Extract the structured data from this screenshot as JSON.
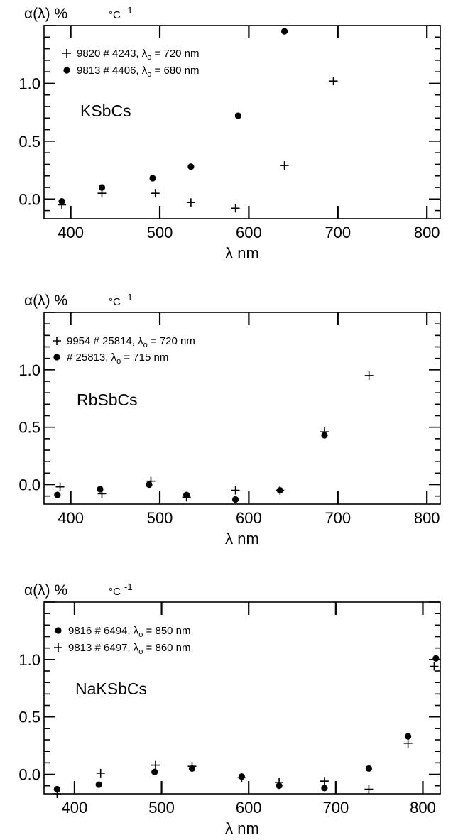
{
  "chart_data": [
    {
      "type": "scatter",
      "ylabel": "α(λ) %",
      "yunit": "°C",
      "yunit_exp": "-1",
      "xlabel": "λ nm",
      "label": "KSbCs",
      "xlim": [
        370,
        815
      ],
      "ylim": [
        -0.17,
        1.5
      ],
      "xticks": [
        400,
        500,
        600,
        700,
        800
      ],
      "xticklabels": [
        "400",
        "500",
        "600",
        "700",
        "800"
      ],
      "yticks": [
        0.0,
        0.5,
        1.0
      ],
      "yticklabels": [
        "0.0",
        "0.5",
        "1.0"
      ],
      "legend": [
        {
          "marker": "plus",
          "label": "9820 # 4243, λ",
          "sub": "o",
          "suffix": " = 720 nm"
        },
        {
          "marker": "dot",
          "label": "9813 # 4406, λ",
          "sub": "o",
          "suffix": " = 680 nm"
        }
      ],
      "series": [
        {
          "marker": "plus",
          "x": [
            390,
            435,
            495,
            535,
            585,
            640,
            695
          ],
          "y": [
            -0.05,
            0.05,
            0.05,
            -0.03,
            -0.08,
            0.29,
            1.02
          ]
        },
        {
          "marker": "dot",
          "x": [
            390,
            435,
            492,
            535,
            588,
            640
          ],
          "y": [
            -0.02,
            0.1,
            0.18,
            0.28,
            0.72,
            1.45
          ]
        }
      ]
    },
    {
      "type": "scatter",
      "ylabel": "α(λ) %",
      "yunit": "°C",
      "yunit_exp": "-1",
      "xlabel": "λ nm",
      "label": "RbSbCs",
      "xlim": [
        370,
        815
      ],
      "ylim": [
        -0.17,
        1.5
      ],
      "xticks": [
        400,
        500,
        600,
        700,
        800
      ],
      "xticklabels": [
        "400",
        "500",
        "600",
        "700",
        "800"
      ],
      "yticks": [
        0.0,
        0.5,
        1.0
      ],
      "yticklabels": [
        "0.0",
        "0.5",
        "1.0"
      ],
      "legend": [
        {
          "marker": "plus",
          "label": "9954 # 25814, λ",
          "sub": "o",
          "suffix": " = 720 nm"
        },
        {
          "marker": "dot",
          "label": "# 25813, λ",
          "sub": "o",
          "suffix": " = 715 nm"
        }
      ],
      "series": [
        {
          "marker": "plus",
          "x": [
            388,
            435,
            490,
            530,
            585,
            635,
            685,
            735
          ],
          "y": [
            -0.02,
            -0.08,
            0.03,
            -0.11,
            -0.05,
            -0.05,
            0.46,
            0.95
          ]
        },
        {
          "marker": "dot",
          "x": [
            385,
            433,
            488,
            530,
            585,
            635,
            685
          ],
          "y": [
            -0.09,
            -0.04,
            0.0,
            -0.09,
            -0.13,
            -0.05,
            0.43
          ]
        }
      ]
    },
    {
      "type": "scatter",
      "ylabel": "α(λ) %",
      "yunit": "°C",
      "yunit_exp": "-1",
      "xlabel": "λ nm",
      "label": "NaKSbCs",
      "xlim": [
        365,
        820
      ],
      "ylim": [
        -0.17,
        1.5
      ],
      "xticks": [
        400,
        500,
        600,
        700,
        800
      ],
      "xticklabels": [
        "400",
        "500",
        "600",
        "700",
        "800"
      ],
      "yticks": [
        0.0,
        0.5,
        1.0
      ],
      "yticklabels": [
        "0.0",
        "0.5",
        "1.0"
      ],
      "legend": [
        {
          "marker": "dot",
          "label": "9816 # 6494, λ",
          "sub": "o",
          "suffix": " = 850 nm"
        },
        {
          "marker": "plus",
          "label": "9813 # 6497, λ",
          "sub": "o",
          "suffix": " = 860 nm"
        }
      ],
      "series": [
        {
          "marker": "dot",
          "x": [
            380,
            428,
            492,
            535,
            592,
            635,
            687,
            738,
            783,
            815
          ],
          "y": [
            -0.13,
            -0.09,
            0.02,
            0.05,
            -0.02,
            -0.1,
            -0.12,
            0.05,
            0.33,
            1.01
          ]
        },
        {
          "marker": "plus",
          "x": [
            380,
            430,
            493,
            535,
            592,
            635,
            687,
            738,
            783,
            813
          ],
          "y": [
            -0.17,
            0.01,
            0.08,
            0.07,
            -0.03,
            -0.07,
            -0.06,
            -0.13,
            0.27,
            0.94
          ]
        }
      ]
    }
  ]
}
